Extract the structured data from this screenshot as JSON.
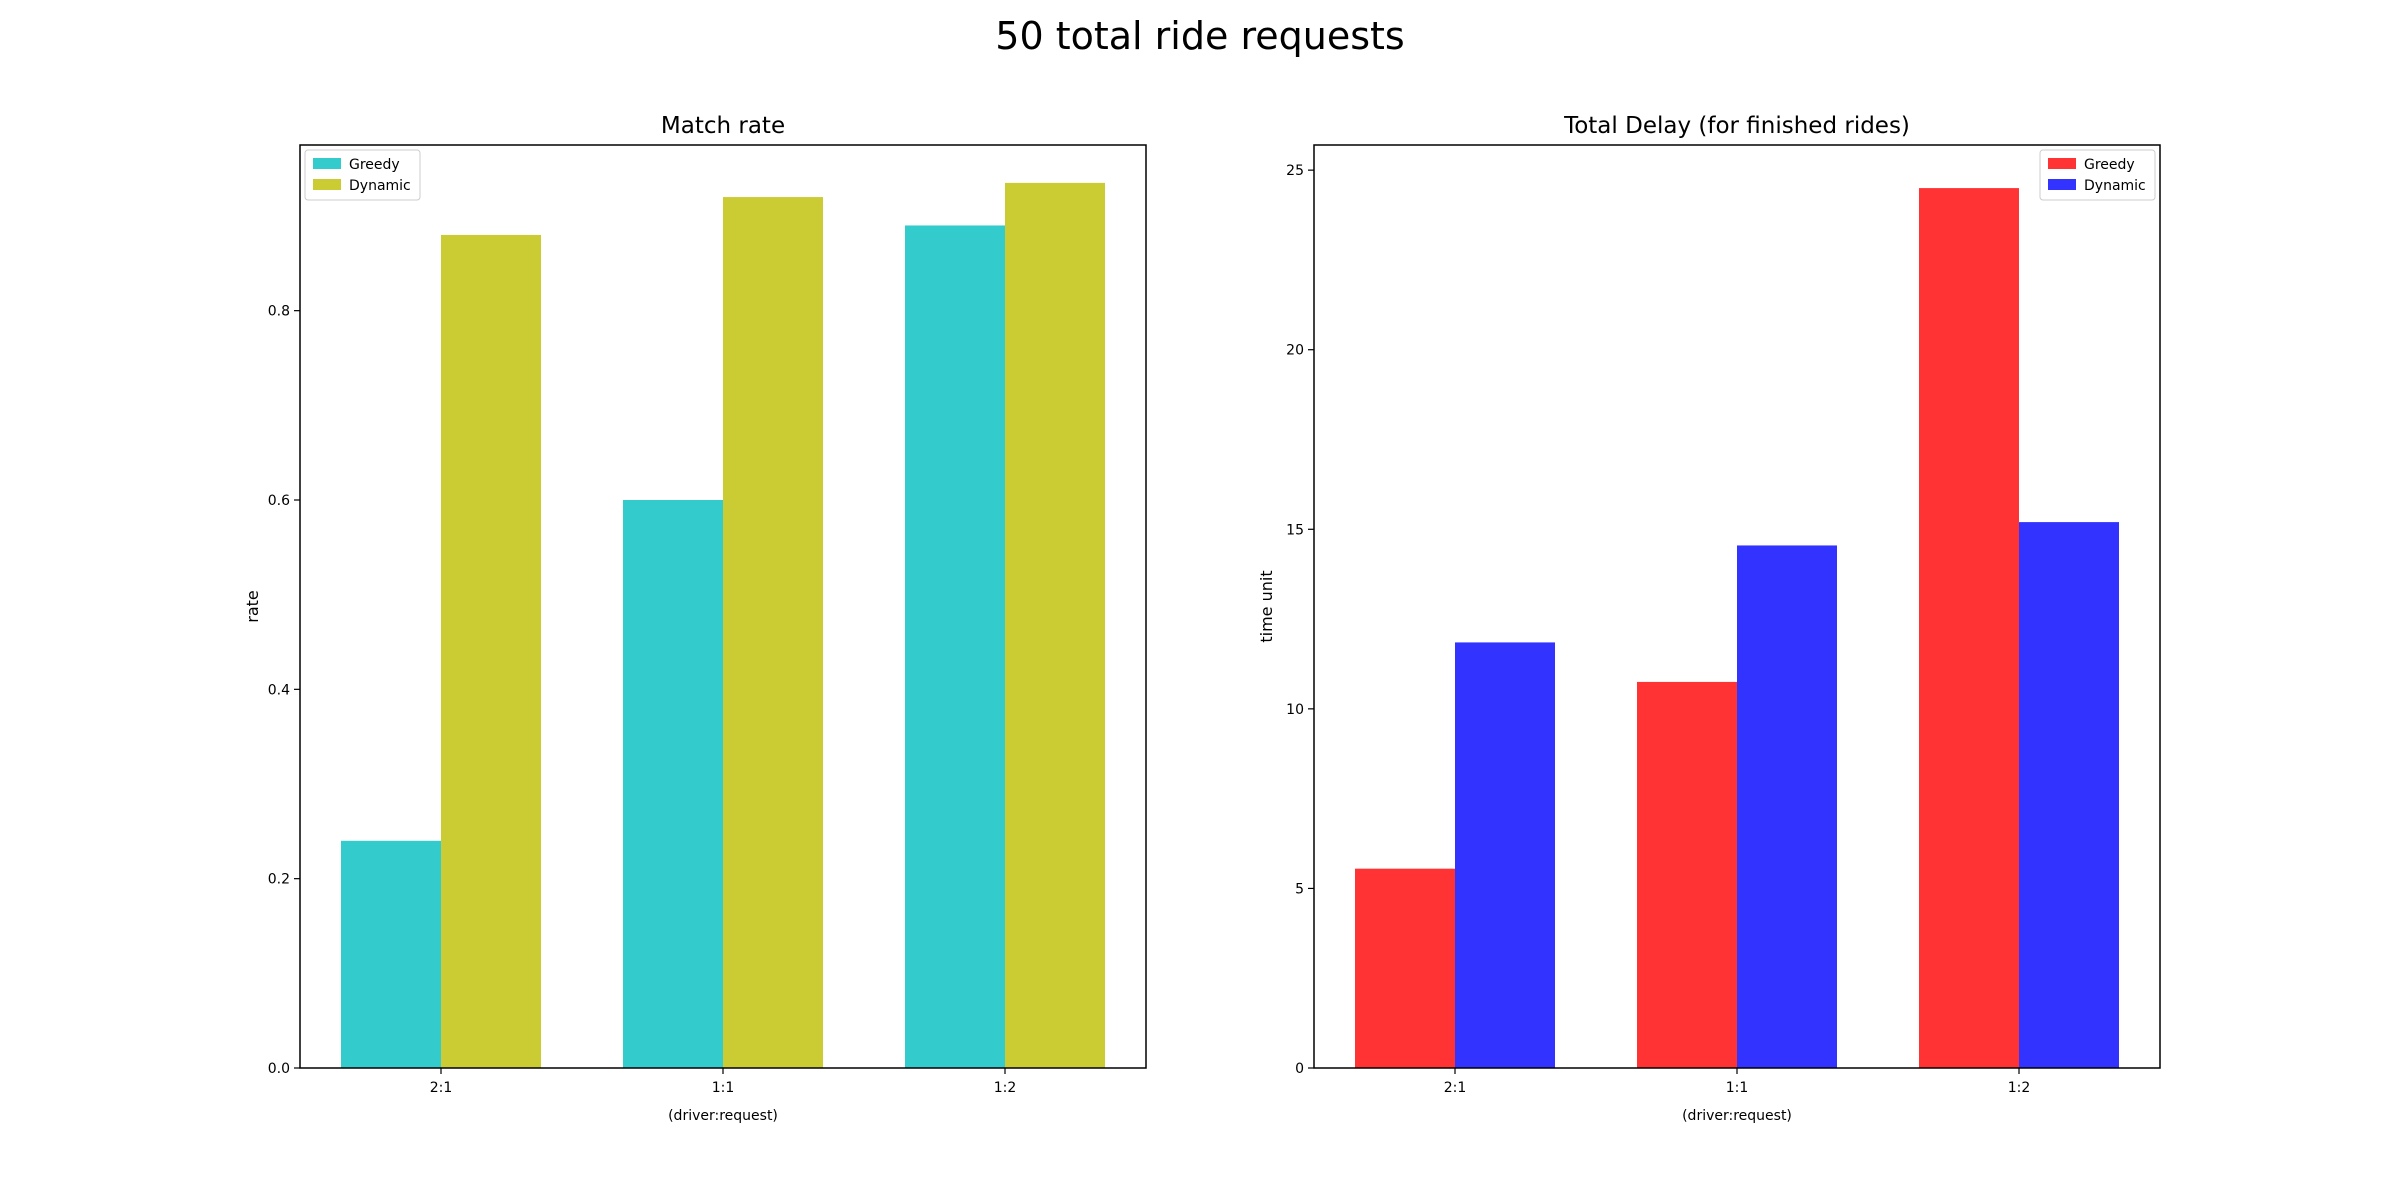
{
  "figure": {
    "suptitle": "50 total ride requests"
  },
  "chart_data": [
    {
      "type": "bar",
      "title": "Match rate",
      "xlabel": "(driver:request)",
      "ylabel": "rate",
      "categories": [
        "2:1",
        "1:1",
        "1:2"
      ],
      "ylim": [
        0,
        0.975
      ],
      "yticks": [
        0.0,
        0.2,
        0.4,
        0.6,
        0.8
      ],
      "ytick_labels": [
        "0.0",
        "0.2",
        "0.4",
        "0.6",
        "0.8"
      ],
      "legend_position": "top-left",
      "grid": false,
      "series": [
        {
          "name": "Greedy",
          "color": "#33cbcb",
          "values": [
            0.24,
            0.6,
            0.89
          ]
        },
        {
          "name": "Dynamic",
          "color": "#cbcb33",
          "values": [
            0.88,
            0.92,
            0.935
          ]
        }
      ]
    },
    {
      "type": "bar",
      "title": "Total Delay (for finished rides)",
      "xlabel": "(driver:request)",
      "ylabel": "time unit",
      "categories": [
        "2:1",
        "1:1",
        "1:2"
      ],
      "ylim": [
        0,
        25.7
      ],
      "yticks": [
        0,
        5,
        10,
        15,
        20,
        25
      ],
      "ytick_labels": [
        "0",
        "5",
        "10",
        "15",
        "20",
        "25"
      ],
      "legend_position": "top-right",
      "grid": false,
      "series": [
        {
          "name": "Greedy",
          "color": "#ff3333",
          "values": [
            5.55,
            10.75,
            24.5
          ]
        },
        {
          "name": "Dynamic",
          "color": "#3333ff",
          "values": [
            11.85,
            14.55,
            15.2
          ]
        }
      ]
    }
  ]
}
